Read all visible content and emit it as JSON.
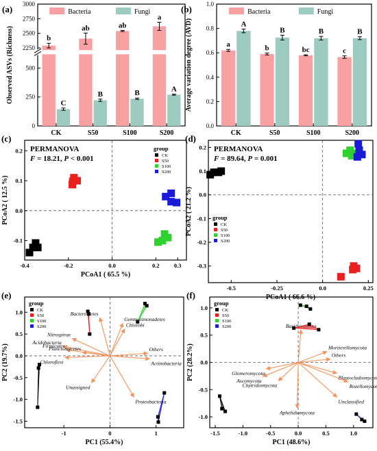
{
  "colors": {
    "bacteria": "#f7a1a3",
    "fungi": "#9ecbbf",
    "ck": "#000000",
    "s50": "#e8201f",
    "s100": "#2ed12e",
    "s200": "#1a1ad9",
    "arrow": "#f5935b"
  },
  "chart_data": [
    {
      "panel": "(a)",
      "type": "bar",
      "categories": [
        "CK",
        "S50",
        "S100",
        "S200"
      ],
      "ylabel": "Observed ASVs (Richness)",
      "axis_break": true,
      "ylim_lower": [
        0,
        600
      ],
      "ylim_upper": [
        2250,
        3000
      ],
      "yticks_lower": [
        "0",
        "250",
        "500"
      ],
      "yticks_upper": [
        "2250",
        "2500",
        "2750",
        "3000"
      ],
      "legend": [
        "Bacteria",
        "Fungi"
      ],
      "series": [
        {
          "name": "Bacteria",
          "values": [
            2290,
            2410,
            2540,
            2620
          ],
          "errors": [
            40,
            95,
            10,
            70
          ],
          "letters": [
            "b",
            "ab",
            "ab",
            "a"
          ]
        },
        {
          "name": "Fungi",
          "values": [
            145,
            222,
            235,
            270
          ],
          "errors": [
            10,
            10,
            6,
            5
          ],
          "letters": [
            "C",
            "B",
            "B",
            "A"
          ]
        }
      ]
    },
    {
      "panel": "(b)",
      "type": "bar",
      "categories": [
        "CK",
        "S50",
        "S100",
        "S200"
      ],
      "ylabel": "Average variation degree (AVD)",
      "ylim": [
        0.0,
        1.0
      ],
      "yticks": [
        "0.0",
        "0.2",
        "0.4",
        "0.6",
        "0.8",
        "1.0"
      ],
      "legend": [
        "Bacteria",
        "Fungi"
      ],
      "series": [
        {
          "name": "Bacteria",
          "values": [
            0.62,
            0.59,
            0.58,
            0.565
          ],
          "errors": [
            0.008,
            0.008,
            0.004,
            0.01
          ],
          "letters": [
            "a",
            "b",
            "bc",
            "c"
          ]
        },
        {
          "name": "Fungi",
          "values": [
            0.78,
            0.725,
            0.72,
            0.72
          ],
          "errors": [
            0.015,
            0.02,
            0.015,
            0.012
          ],
          "letters": [
            "A",
            "B",
            "B",
            "B"
          ]
        }
      ]
    },
    {
      "panel": "(c)",
      "type": "scatter",
      "annotation": "PERMANOVA",
      "stat_f": "18.21",
      "stat_p": "0.001",
      "xlabel": "PCoA1 ( 65.5 %)",
      "ylabel": "PCoA2 ( 12.5 %)",
      "xlim": [
        -0.4,
        0.34
      ],
      "ylim": [
        -0.165,
        0.235
      ],
      "xticks": [
        -0.4,
        -0.2,
        0.0,
        0.2,
        0.3
      ],
      "xtick_labels": [
        "-0.4",
        "-0.2",
        "0.0",
        "0.2",
        "0.3"
      ],
      "yticks": [
        -0.1,
        0.0,
        0.1,
        0.2
      ],
      "ytick_labels": [
        "-0.1",
        "0.0",
        "0.1",
        "0.2"
      ],
      "legend_title": "group",
      "legend": [
        "CK",
        "S50",
        "S100",
        "S200"
      ],
      "series": [
        {
          "name": "CK",
          "points": [
            [
              -0.35,
              -0.108
            ],
            [
              -0.34,
              -0.123
            ],
            [
              -0.362,
              -0.123
            ],
            [
              -0.378,
              -0.14
            ]
          ]
        },
        {
          "name": "S50",
          "points": [
            [
              -0.175,
              0.11
            ],
            [
              -0.16,
              0.1
            ],
            [
              -0.18,
              0.098
            ],
            [
              -0.182,
              0.087
            ]
          ]
        },
        {
          "name": "S100",
          "points": [
            [
              0.24,
              -0.078
            ],
            [
              0.255,
              -0.09
            ],
            [
              0.21,
              -0.105
            ],
            [
              0.23,
              -0.1
            ]
          ]
        },
        {
          "name": "S200",
          "points": [
            [
              0.27,
              0.058
            ],
            [
              0.245,
              0.047
            ],
            [
              0.27,
              0.03
            ],
            [
              0.295,
              0.027
            ]
          ]
        }
      ]
    },
    {
      "panel": "(d)",
      "type": "scatter",
      "annotation": "PERMANOVA",
      "stat_f": "89.64",
      "stat_p": "0.001",
      "xlabel": "PCoA1 ( 66.6 %)",
      "ylabel": "PCoA2 ( 21.2 %)",
      "xlim": [
        -0.625,
        0.275
      ],
      "ylim": [
        -0.37,
        0.23
      ],
      "xticks": [
        -0.5,
        -0.25,
        0.0,
        0.25
      ],
      "xtick_labels": [
        "-0.5",
        "-0.25",
        "0.0",
        "0.25"
      ],
      "yticks": [
        -0.3,
        -0.2,
        -0.1,
        0.0,
        0.1,
        0.2
      ],
      "ytick_labels": [
        "-0.3",
        "-0.2",
        "-0.1",
        "0.0",
        "0.1",
        "0.2"
      ],
      "legend_title": "group",
      "legend": [
        "CK",
        "S50",
        "S100",
        "S200"
      ],
      "series": [
        {
          "name": "CK",
          "points": [
            [
              -0.555,
              0.1
            ],
            [
              -0.57,
              0.095
            ],
            [
              -0.595,
              0.095
            ],
            [
              -0.615,
              0.085
            ]
          ]
        },
        {
          "name": "S50",
          "points": [
            [
              0.17,
              -0.3
            ],
            [
              0.185,
              -0.31
            ],
            [
              0.165,
              -0.315
            ],
            [
              0.1,
              -0.345
            ]
          ]
        },
        {
          "name": "S100",
          "points": [
            [
              0.15,
              0.188
            ],
            [
              0.13,
              0.175
            ],
            [
              0.17,
              0.175
            ],
            [
              0.16,
              0.165
            ]
          ]
        },
        {
          "name": "S200",
          "points": [
            [
              0.195,
              0.215
            ],
            [
              0.2,
              0.188
            ],
            [
              0.215,
              0.17
            ],
            [
              0.19,
              0.16
            ]
          ]
        }
      ]
    },
    {
      "panel": "(e)",
      "type": "scatter",
      "subtype": "biplot",
      "xlabel": "PC1 (55.4%)",
      "ylabel": "PC2 (19.7%)",
      "xlim": [
        -1.85,
        1.6
      ],
      "ylim": [
        -1.65,
        1.35
      ],
      "xticks": [
        -1,
        0,
        1
      ],
      "xtick_labels": [
        "-1",
        "0",
        "1"
      ],
      "yticks": [
        -1.5,
        -1.0,
        -0.5,
        0.0,
        0.5,
        1.0
      ],
      "ytick_labels": [
        "-1.5",
        "-1.0",
        "-0.5",
        "0.0",
        "0.5",
        "1.0"
      ],
      "legend_title": "group",
      "legend": [
        "CK",
        "S50",
        "S100",
        "S200"
      ],
      "series": [
        {
          "name": "CK",
          "points": [
            [
              -1.53,
              -0.2
            ],
            [
              -1.55,
              -0.28
            ],
            [
              -1.57,
              -1.18
            ]
          ]
        },
        {
          "name": "S50",
          "points": [
            [
              -0.48,
              1.02
            ],
            [
              -0.46,
              0.96
            ],
            [
              -0.44,
              0.5
            ]
          ]
        },
        {
          "name": "S100",
          "points": [
            [
              0.6,
              0.78
            ],
            [
              0.76,
              1.2
            ],
            [
              0.8,
              1.15
            ]
          ]
        },
        {
          "name": "S200",
          "points": [
            [
              1.18,
              -0.85
            ],
            [
              1.04,
              -1.4
            ],
            [
              1.05,
              -1.52
            ]
          ]
        }
      ],
      "arrows": [
        {
          "label": "Acidobacteria",
          "x": -1.02,
          "y": 0.22
        },
        {
          "label": "Firmicutes",
          "x": -0.95,
          "y": 0.14
        },
        {
          "label": "Chloroflexi",
          "x": -0.98,
          "y": -0.04
        },
        {
          "label": "Nitrospirae",
          "x": -0.82,
          "y": 0.4
        },
        {
          "label": "Planctomycetes",
          "x": -0.6,
          "y": 0.08
        },
        {
          "label": "Bacteroidetes",
          "x": -0.22,
          "y": 0.88
        },
        {
          "label": "Gemmatimonadetes",
          "x": 0.28,
          "y": 0.75
        },
        {
          "label": "Chlorobi",
          "x": 0.32,
          "y": 0.62
        },
        {
          "label": "Others",
          "x": 0.82,
          "y": 0.06
        },
        {
          "label": "Actinobacteria",
          "x": 0.86,
          "y": -0.07
        },
        {
          "label": "Unassigned",
          "x": -0.4,
          "y": -0.62
        },
        {
          "label": "Proteobacteria",
          "x": 0.52,
          "y": -0.95
        }
      ]
    },
    {
      "panel": "(f)",
      "type": "scatter",
      "subtype": "biplot",
      "xlabel": "PC1 (48.6%)",
      "ylabel": "PC2 (28.2%)",
      "xlim": [
        -1.6,
        1.35
      ],
      "ylim": [
        -1.2,
        1.2
      ],
      "xticks": [
        -1.5,
        -1.0,
        -0.5,
        0.0,
        0.5,
        1.0
      ],
      "xtick_labels": [
        "-1.5",
        "-1.0",
        "-0.5",
        "0.0",
        "0.5",
        "1.0"
      ],
      "yticks": [
        -1.0,
        -0.5,
        0.0,
        0.5,
        1.0
      ],
      "ytick_labels": [
        "-1.0",
        "-0.5",
        "0.0",
        "0.5",
        "1.0"
      ],
      "legend_title": "group",
      "legend": [
        "CK",
        "S50",
        "S100",
        "S200"
      ],
      "series": [
        {
          "name": "CK",
          "points": [
            [
              -1.42,
              -0.62
            ],
            [
              -1.38,
              -0.85
            ],
            [
              -1.32,
              -0.9
            ]
          ]
        },
        {
          "name": "S50",
          "points": [
            [
              -0.08,
              0.63
            ],
            [
              0.2,
              0.7
            ],
            [
              0.37,
              0.6
            ]
          ]
        },
        {
          "name": "S100",
          "points": [
            [
              0.04,
              1.05
            ],
            [
              0.15,
              1.03
            ],
            [
              0.22,
              0.98
            ]
          ]
        },
        {
          "name": "S200",
          "points": [
            [
              1.05,
              -0.95
            ],
            [
              1.15,
              -1.05
            ],
            [
              1.2,
              -1.08
            ]
          ]
        }
      ],
      "arrows": [
        {
          "label": "Basidiomycota",
          "x": 0.05,
          "y": 0.6
        },
        {
          "label": "Mortierellomycota",
          "x": 0.52,
          "y": 0.2
        },
        {
          "label": "Others",
          "x": 0.58,
          "y": 0.06
        },
        {
          "label": "Glomeromycota",
          "x": -0.58,
          "y": -0.12
        },
        {
          "label": "Ascomycota",
          "x": -0.64,
          "y": -0.26
        },
        {
          "label": "Chytridiomycota",
          "x": -0.36,
          "y": -0.34
        },
        {
          "label": "Blastocladiomycota",
          "x": 0.7,
          "y": -0.2
        },
        {
          "label": "Rozellomycota",
          "x": 0.9,
          "y": -0.36
        },
        {
          "label": "Aphelidiomycota",
          "x": -0.02,
          "y": -0.84
        },
        {
          "label": "Unclassified",
          "x": 0.7,
          "y": -0.64
        }
      ]
    }
  ]
}
